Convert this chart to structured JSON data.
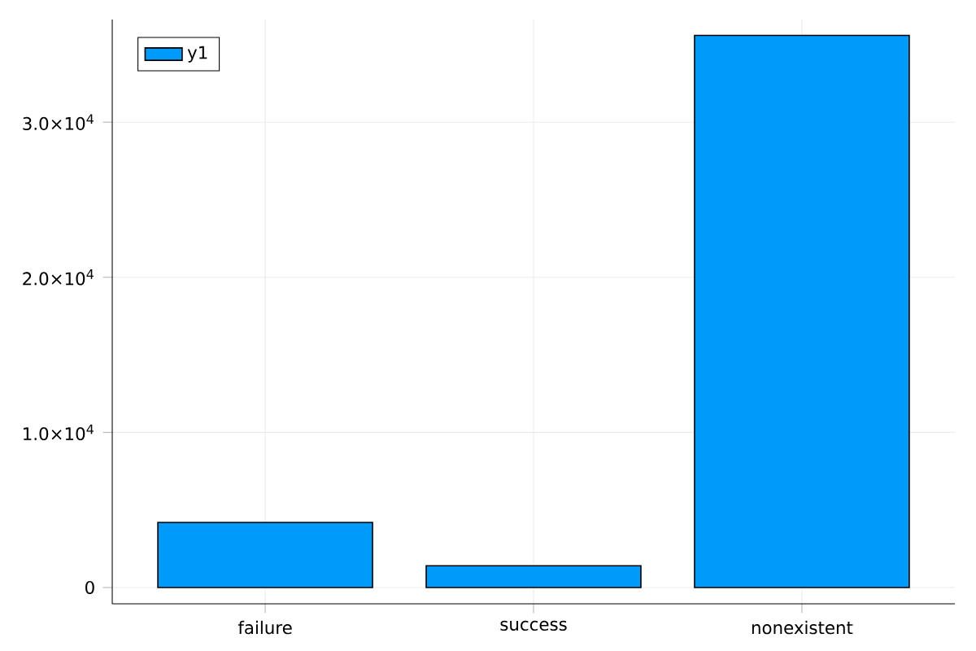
{
  "chart_data": {
    "type": "bar",
    "categories": [
      "failure",
      "success",
      "nonexistent"
    ],
    "series": [
      {
        "name": "y1",
        "color": "#009afa",
        "values": [
          4200,
          1400,
          35600
        ]
      }
    ],
    "ylim": [
      -1050,
      36620
    ],
    "yticks": [
      0,
      {
        "value": 10000,
        "label": "1.0×10$^{4}$"
      },
      {
        "value": 20000,
        "label": "2.0×10$^{4}$"
      },
      {
        "value": 30000,
        "label": "3.0×10$^{4}$"
      }
    ],
    "grid": true,
    "legend": "top left"
  }
}
